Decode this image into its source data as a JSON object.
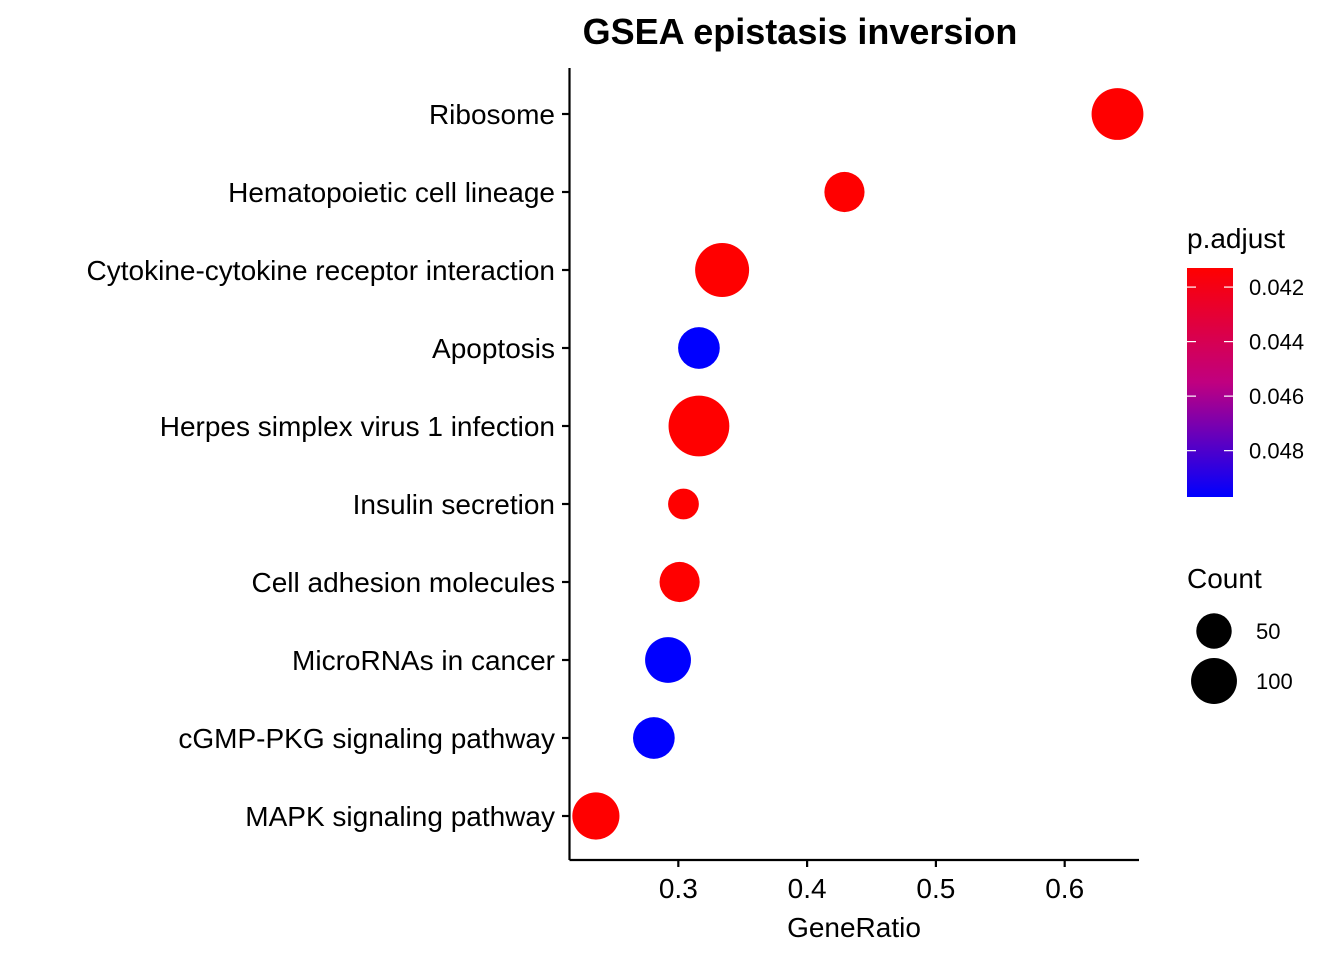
{
  "chart_data": {
    "type": "scatter",
    "title": "GSEA epistasis inversion",
    "xlabel": "GeneRatio",
    "ylabel": "",
    "xlim": [
      0.2155,
      0.6577
    ],
    "x_ticks": [
      "0.3",
      "0.4",
      "0.5",
      "0.6"
    ],
    "x_tick_values": [
      0.3,
      0.4,
      0.5,
      0.6
    ],
    "categories": [
      "Ribosome",
      "Hematopoietic cell lineage",
      "Cytokine-cytokine receptor interaction",
      "Apoptosis",
      "Herpes simplex virus 1 infection",
      "Insulin secretion",
      "Cell adhesion molecules",
      "MicroRNAs in cancer",
      "cGMP-PKG signaling pathway",
      "MAPK signaling pathway"
    ],
    "gene_ratio": [
      0.641,
      0.429,
      0.334,
      0.316,
      0.316,
      0.304,
      0.301,
      0.292,
      0.281,
      0.236
    ],
    "count": [
      90,
      45,
      100,
      50,
      135,
      20,
      45,
      65,
      50,
      70
    ],
    "p_adjust": [
      0.0413,
      0.0413,
      0.0413,
      0.0497,
      0.0413,
      0.0413,
      0.0413,
      0.0497,
      0.0497,
      0.0413
    ],
    "color_legend": {
      "title": "p.adjust",
      "ticks": [
        "0.042",
        "0.044",
        "0.046",
        "0.048"
      ],
      "tick_values": [
        0.042,
        0.044,
        0.046,
        0.048
      ],
      "range": [
        0.0413,
        0.0497
      ],
      "low_color": "#FF0000",
      "high_color": "#0000FF"
    },
    "size_legend": {
      "title": "Count",
      "labels": [
        "50",
        "100"
      ],
      "values": [
        50,
        100
      ]
    },
    "grid": false
  }
}
